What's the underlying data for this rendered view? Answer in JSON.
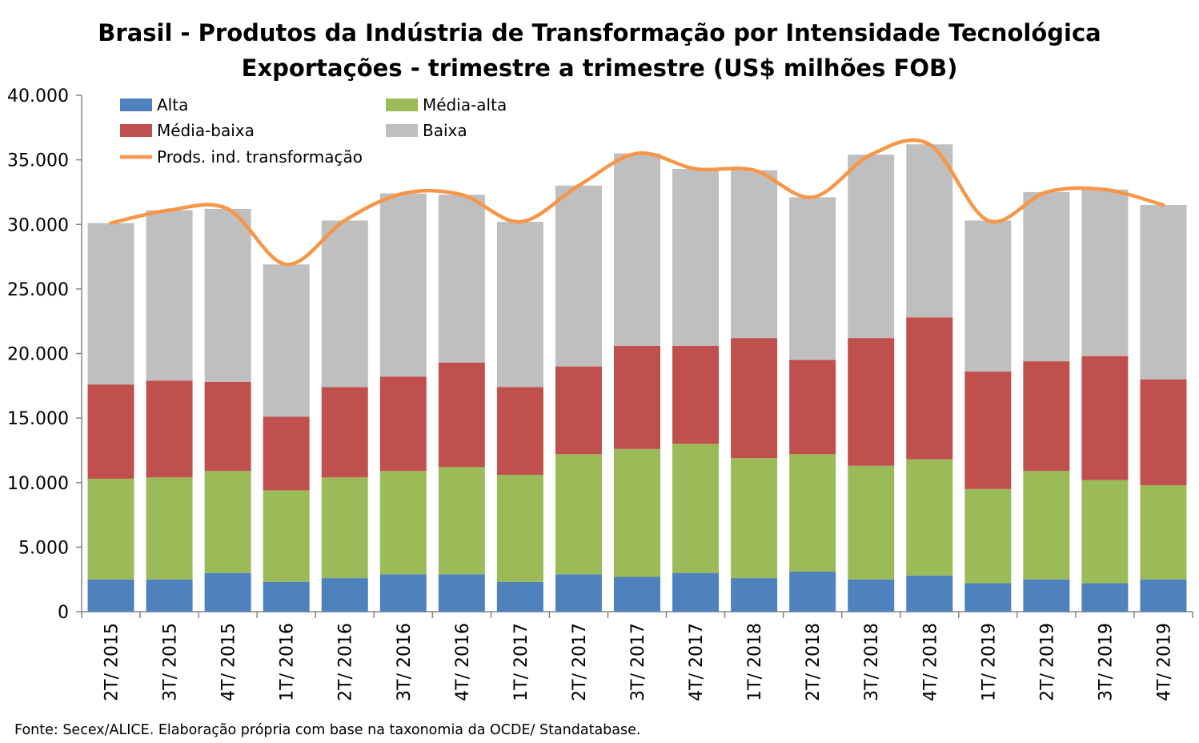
{
  "chart_data": {
    "type": "bar",
    "stacked": true,
    "title": "Brasil - Produtos da Indústria de Transformação por Intensidade Tecnológica",
    "subtitle": "Exportações - trimestre a trimestre (US$ milhões FOB)",
    "xlabel": "",
    "ylabel": "",
    "ylim": [
      0,
      40000
    ],
    "yticks": [
      "0",
      "5.000",
      "10.000",
      "15.000",
      "20.000",
      "25.000",
      "30.000",
      "35.000",
      "40.000"
    ],
    "grid": false,
    "legend_position": "top-left",
    "categories": [
      "2T/ 2015",
      "3T/ 2015",
      "4T/ 2015",
      "1T/ 2016",
      "2T/ 2016",
      "3T/ 2016",
      "4T/ 2016",
      "1T/ 2017",
      "2T/ 2017",
      "3T/ 2017",
      "4T/ 2017",
      "1T/ 2018",
      "2T/ 2018",
      "3T/ 2018",
      "4T/ 2018",
      "1T/ 2019",
      "2T/ 2019",
      "3T/ 2019",
      "4T/ 2019"
    ],
    "series": [
      {
        "name": "Alta",
        "kind": "bar",
        "color": "#4F81BD",
        "values": [
          2500,
          2500,
          3000,
          2300,
          2600,
          2900,
          2900,
          2300,
          2900,
          2700,
          3000,
          2600,
          3100,
          2500,
          2800,
          2200,
          2500,
          2200,
          2500
        ]
      },
      {
        "name": "Média-alta",
        "kind": "bar",
        "color": "#9BBB59",
        "values": [
          7800,
          7900,
          7900,
          7100,
          7800,
          8000,
          8300,
          8300,
          9300,
          9900,
          10000,
          9300,
          9100,
          8800,
          9000,
          7300,
          8400,
          8000,
          7300
        ]
      },
      {
        "name": "Média-baixa",
        "kind": "bar",
        "color": "#C0504D",
        "values": [
          7300,
          7500,
          6900,
          5700,
          7000,
          7300,
          8100,
          6800,
          6800,
          8000,
          7600,
          9300,
          7300,
          9900,
          11000,
          9100,
          8500,
          9600,
          8200
        ]
      },
      {
        "name": "Baixa",
        "kind": "bar",
        "color": "#BFBFBF",
        "values": [
          12500,
          13200,
          13400,
          11800,
          12900,
          14200,
          13000,
          12800,
          14000,
          14900,
          13700,
          13000,
          12600,
          14200,
          13400,
          11700,
          13100,
          12900,
          13500
        ]
      },
      {
        "name": "Prods. ind. transformação",
        "kind": "line",
        "color": "#F79646",
        "values": [
          30100,
          31100,
          31200,
          26900,
          30300,
          32400,
          32300,
          30200,
          33000,
          35500,
          34300,
          34200,
          32100,
          35400,
          36200,
          30300,
          32500,
          32700,
          31500
        ]
      }
    ]
  },
  "footer": "Fonte: Secex/ALICE. Elaboração própria com base na taxonomia da OCDE/ Standatabase."
}
